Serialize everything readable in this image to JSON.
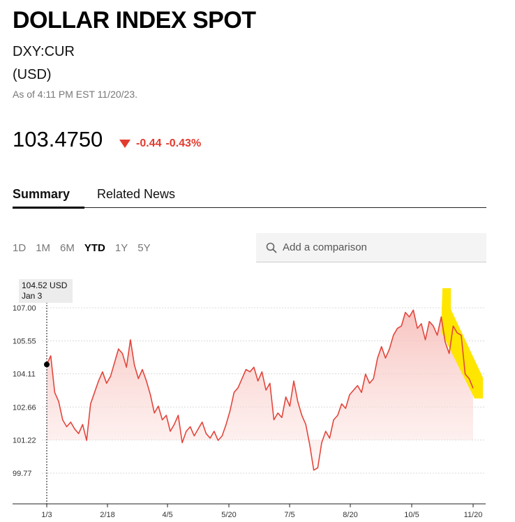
{
  "header": {
    "title": "DOLLAR INDEX SPOT",
    "ticker": "DXY:CUR",
    "currency": "(USD)",
    "as_of": "As of 4:11 PM EST 11/20/23."
  },
  "quote": {
    "price": "103.4750",
    "change": "-0.44",
    "change_pct": "-0.43%",
    "change_color": "#e23b2f"
  },
  "tabs": [
    {
      "label": "Summary",
      "active": true
    },
    {
      "label": "Related News",
      "active": false
    }
  ],
  "ranges": [
    {
      "label": "1D"
    },
    {
      "label": "1M"
    },
    {
      "label": "6M"
    },
    {
      "label": "YTD",
      "active": true
    },
    {
      "label": "1Y"
    },
    {
      "label": "5Y"
    }
  ],
  "compare": {
    "placeholder": "Add a comparison"
  },
  "tooltip": {
    "value": "104.52 USD",
    "date": "Jan 3"
  },
  "chart_data": {
    "type": "area",
    "line_color": "#e2463c",
    "highlight_color": "#ffe600",
    "y_ticks": [
      "107.00",
      "105.55",
      "104.11",
      "102.66",
      "101.22",
      "99.77"
    ],
    "y_tick_values": [
      107.0,
      105.55,
      104.11,
      102.66,
      101.22,
      99.77
    ],
    "x_ticks": [
      "1/3",
      "2/18",
      "4/5",
      "5/20",
      "7/5",
      "8/20",
      "10/5",
      "11/20"
    ],
    "ylim": [
      98.3,
      108.0
    ],
    "grid": true,
    "series": [
      {
        "values": [
          104.52,
          104.9,
          103.3,
          102.9,
          102.1,
          101.8,
          102.0,
          101.7,
          101.5,
          101.9,
          101.2,
          102.8,
          103.3,
          103.8,
          104.2,
          103.7,
          104.0,
          104.6,
          105.2,
          105.0,
          104.4,
          105.6,
          104.5,
          103.9,
          104.3,
          103.8,
          103.2,
          102.4,
          102.7,
          102.1,
          102.3,
          101.6,
          101.9,
          102.3,
          101.1,
          101.6,
          101.8,
          101.4,
          101.7,
          102.0,
          101.5,
          101.3,
          101.6,
          101.2,
          101.4,
          101.9,
          102.5,
          103.3,
          103.5,
          103.9,
          104.3,
          104.2,
          104.4,
          103.8,
          104.2,
          103.4,
          103.7,
          102.1,
          102.4,
          102.2,
          103.1,
          102.7,
          103.8,
          102.9,
          102.3,
          101.9,
          101.0,
          99.9,
          100.0,
          101.1,
          101.6,
          101.3,
          102.1,
          102.3,
          102.8,
          102.6,
          103.2,
          103.4,
          103.6,
          103.3,
          104.1,
          103.7,
          103.9,
          104.8,
          105.3,
          104.8,
          105.2,
          105.8,
          106.1,
          106.2,
          106.8,
          106.6,
          106.9,
          106.1,
          106.3,
          105.6,
          106.4,
          106.2,
          105.8,
          106.6,
          105.5,
          105.0,
          106.2,
          105.9,
          105.8,
          104.1,
          103.9,
          103.475
        ]
      }
    ]
  }
}
